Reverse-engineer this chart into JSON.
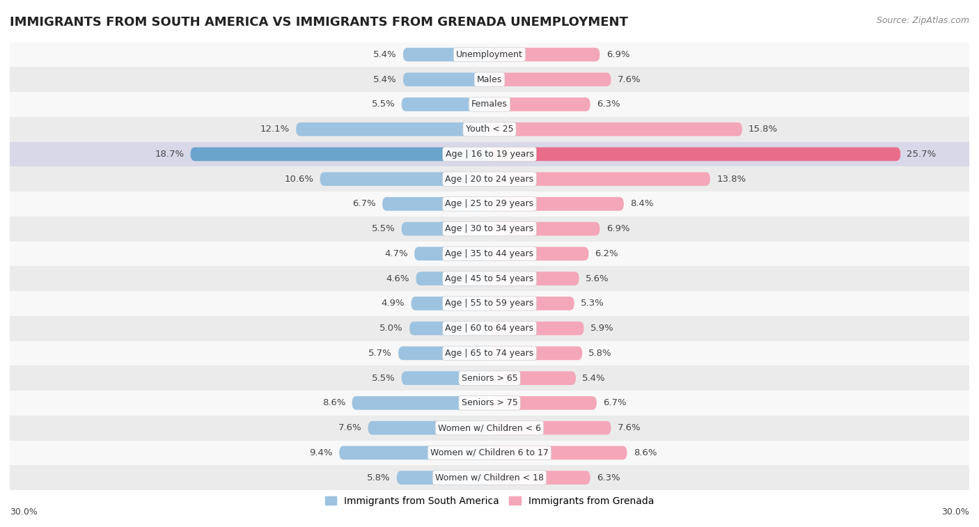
{
  "title": "IMMIGRANTS FROM SOUTH AMERICA VS IMMIGRANTS FROM GRENADA UNEMPLOYMENT",
  "source": "Source: ZipAtlas.com",
  "categories": [
    "Unemployment",
    "Males",
    "Females",
    "Youth < 25",
    "Age | 16 to 19 years",
    "Age | 20 to 24 years",
    "Age | 25 to 29 years",
    "Age | 30 to 34 years",
    "Age | 35 to 44 years",
    "Age | 45 to 54 years",
    "Age | 55 to 59 years",
    "Age | 60 to 64 years",
    "Age | 65 to 74 years",
    "Seniors > 65",
    "Seniors > 75",
    "Women w/ Children < 6",
    "Women w/ Children 6 to 17",
    "Women w/ Children < 18"
  ],
  "south_america": [
    5.4,
    5.4,
    5.5,
    12.1,
    18.7,
    10.6,
    6.7,
    5.5,
    4.7,
    4.6,
    4.9,
    5.0,
    5.7,
    5.5,
    8.6,
    7.6,
    9.4,
    5.8
  ],
  "grenada": [
    6.9,
    7.6,
    6.3,
    15.8,
    25.7,
    13.8,
    8.4,
    6.9,
    6.2,
    5.6,
    5.3,
    5.9,
    5.8,
    5.4,
    6.7,
    7.6,
    8.6,
    6.3
  ],
  "color_south_america": "#9dc3e0",
  "color_grenada": "#f4a7b9",
  "color_highlight_south_america": "#6aa3cc",
  "color_highlight_grenada": "#e96d8a",
  "background_row_odd": "#ebebeb",
  "background_row_even": "#f8f8f8",
  "highlight_row_bg": "#d8d8e8",
  "axis_limit": 30.0,
  "label_fontsize": 9.5,
  "category_fontsize": 9.0,
  "title_fontsize": 13,
  "legend_fontsize": 10,
  "highlight_idx": 4
}
